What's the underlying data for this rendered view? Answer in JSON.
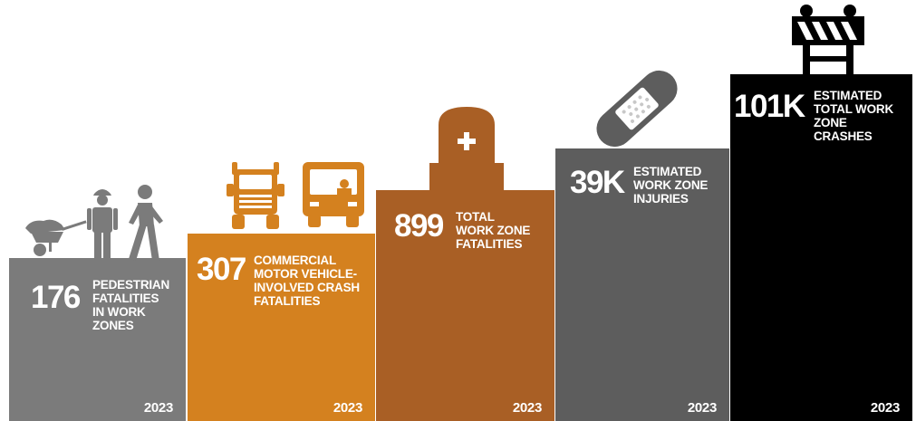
{
  "chart_data": {
    "type": "bar",
    "title": "",
    "xlabel": "",
    "ylabel": "",
    "categories": [
      "PEDESTRIAN FATALITIES IN WORK ZONES",
      "COMMERCIAL MOTOR VEHICLE-INVOLVED CRASH FATALITIES",
      "TOTAL WORK ZONE FATALITIES",
      "ESTIMATED WORK ZONE INJURIES",
      "ESTIMATED TOTAL WORK ZONE CRASHES"
    ],
    "bars": [
      {
        "value_label": "176",
        "label": "PEDESTRIAN\nFATALITIES\nIN WORK\nZONES",
        "year": "2023",
        "color": "#7b7b7b",
        "icon": "construction-workers-icon",
        "level": 1
      },
      {
        "value_label": "307",
        "label": "COMMERCIAL\nMOTOR VEHICLE-\nINVOLVED CRASH\nFATALITIES",
        "year": "2023",
        "color": "#d4811f",
        "icon": "truck-and-bus-icon",
        "level": 2
      },
      {
        "value_label": "899",
        "label": "TOTAL\nWORK ZONE\nFATALITIES",
        "year": "2023",
        "color": "#a95f25",
        "icon": "tombstone-icon",
        "level": 3
      },
      {
        "value_label": "39K",
        "label": "ESTIMATED\nWORK ZONE\nINJURIES",
        "year": "2023",
        "color": "#5d5d5d",
        "icon": "bandage-icon",
        "level": 4
      },
      {
        "value_label": "101K",
        "label": "ESTIMATED\nTOTAL WORK\nZONE\nCRASHES",
        "year": "2023",
        "color": "#000000",
        "icon": "road-barricade-icon",
        "level": 5
      }
    ]
  }
}
